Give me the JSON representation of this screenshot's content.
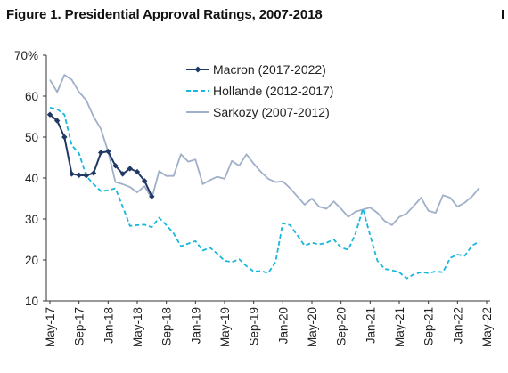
{
  "figure_title": "Figure 1. Presidential Approval Ratings, 2007-2018",
  "edge_mark": "I",
  "chart_data": {
    "type": "line",
    "title": "Figure 1. Presidential Approval Ratings, 2007-2018",
    "xlabel": "",
    "ylabel": "",
    "ylim": [
      10,
      70
    ],
    "yticks": [
      10,
      20,
      30,
      40,
      50,
      60,
      70
    ],
    "ytick_labels": [
      "10",
      "20",
      "30",
      "40",
      "50",
      "60",
      "70%"
    ],
    "xlim": [
      "2017-05",
      "2022-05"
    ],
    "xticks": [
      "2017-05",
      "2017-09",
      "2018-01",
      "2018-05",
      "2018-09",
      "2019-01",
      "2019-05",
      "2019-09",
      "2020-01",
      "2020-05",
      "2020-09",
      "2021-01",
      "2021-05",
      "2021-09",
      "2022-01",
      "2022-05"
    ],
    "xtick_labels": [
      "May-17",
      "Sep-17",
      "Jan-18",
      "May-18",
      "Sep-18",
      "Jan-19",
      "May-19",
      "Sep-19",
      "Jan-20",
      "May-20",
      "Sep-20",
      "Jan-21",
      "May-21",
      "Sep-21",
      "Jan-22",
      "May-22"
    ],
    "grid": false,
    "legend_position": "top-center",
    "series": [
      {
        "name": "Macron (2017-2022)",
        "color": "#1f3864",
        "style": "solid-markers",
        "points": [
          [
            "2017-05",
            55.5
          ],
          [
            "2017-06",
            54
          ],
          [
            "2017-07",
            50
          ],
          [
            "2017-08",
            41
          ],
          [
            "2017-09",
            40.7
          ],
          [
            "2017-10",
            40.6
          ],
          [
            "2017-11",
            41.2
          ],
          [
            "2017-12",
            46.2
          ],
          [
            "2018-01",
            46.5
          ],
          [
            "2018-02",
            43
          ],
          [
            "2018-03",
            41
          ],
          [
            "2018-04",
            42.3
          ],
          [
            "2018-05",
            41.5
          ],
          [
            "2018-06",
            39.3
          ],
          [
            "2018-07",
            35.5
          ]
        ]
      },
      {
        "name": "Hollande (2012-2017)",
        "color": "#18b7dc",
        "style": "dashed",
        "points": [
          [
            "2017-05",
            57.2
          ],
          [
            "2017-06",
            56.8
          ],
          [
            "2017-07",
            55.5
          ],
          [
            "2017-08",
            48
          ],
          [
            "2017-09",
            46
          ],
          [
            "2017-10",
            40.5
          ],
          [
            "2017-11",
            38.5
          ],
          [
            "2017-12",
            36.8
          ],
          [
            "2018-01",
            37
          ],
          [
            "2018-02",
            37.5
          ],
          [
            "2018-03",
            33
          ],
          [
            "2018-04",
            28.3
          ],
          [
            "2018-05",
            28.5
          ],
          [
            "2018-06",
            28.6
          ],
          [
            "2018-07",
            28
          ],
          [
            "2018-08",
            30.3
          ],
          [
            "2018-09",
            28.5
          ],
          [
            "2018-10",
            26.5
          ],
          [
            "2018-11",
            23.3
          ],
          [
            "2018-12",
            24
          ],
          [
            "2019-01",
            24.6
          ],
          [
            "2019-02",
            22.3
          ],
          [
            "2019-03",
            23
          ],
          [
            "2019-04",
            21.5
          ],
          [
            "2019-05",
            19.8
          ],
          [
            "2019-06",
            19.5
          ],
          [
            "2019-07",
            20.2
          ],
          [
            "2019-08",
            18.5
          ],
          [
            "2019-09",
            17.2
          ],
          [
            "2019-10",
            17.3
          ],
          [
            "2019-11",
            16.8
          ],
          [
            "2019-12",
            19.5
          ],
          [
            "2020-01",
            29
          ],
          [
            "2020-02",
            28.5
          ],
          [
            "2020-03",
            26
          ],
          [
            "2020-04",
            23.5
          ],
          [
            "2020-05",
            24.2
          ],
          [
            "2020-06",
            23.8
          ],
          [
            "2020-07",
            24.2
          ],
          [
            "2020-08",
            25
          ],
          [
            "2020-09",
            23
          ],
          [
            "2020-10",
            22.5
          ],
          [
            "2020-11",
            26.5
          ],
          [
            "2020-12",
            32.5
          ],
          [
            "2021-01",
            26
          ],
          [
            "2021-02",
            19.8
          ],
          [
            "2021-03",
            17.8
          ],
          [
            "2021-04",
            17.5
          ],
          [
            "2021-05",
            17
          ],
          [
            "2021-06",
            15.5
          ],
          [
            "2021-07",
            16.5
          ],
          [
            "2021-08",
            17
          ],
          [
            "2021-09",
            16.8
          ],
          [
            "2021-10",
            17.2
          ],
          [
            "2021-11",
            17
          ],
          [
            "2021-12",
            20.5
          ],
          [
            "2022-01",
            21.3
          ],
          [
            "2022-02",
            21
          ],
          [
            "2022-03",
            23.5
          ],
          [
            "2022-04",
            24.5
          ]
        ]
      },
      {
        "name": "Sarkozy (2007-2012)",
        "color": "#9fb0c8",
        "style": "solid",
        "points": [
          [
            "2017-05",
            64
          ],
          [
            "2017-06",
            61
          ],
          [
            "2017-07",
            65.2
          ],
          [
            "2017-08",
            64
          ],
          [
            "2017-09",
            61
          ],
          [
            "2017-10",
            59
          ],
          [
            "2017-11",
            55
          ],
          [
            "2017-12",
            52
          ],
          [
            "2018-01",
            46.5
          ],
          [
            "2018-02",
            39
          ],
          [
            "2018-03",
            38.5
          ],
          [
            "2018-04",
            37.8
          ],
          [
            "2018-05",
            36.5
          ],
          [
            "2018-06",
            38
          ],
          [
            "2018-07",
            35
          ],
          [
            "2018-08",
            41.7
          ],
          [
            "2018-09",
            40.5
          ],
          [
            "2018-10",
            40.5
          ],
          [
            "2018-11",
            45.8
          ],
          [
            "2018-12",
            44
          ],
          [
            "2019-01",
            44.5
          ],
          [
            "2019-02",
            38.5
          ],
          [
            "2019-03",
            39.5
          ],
          [
            "2019-04",
            40.3
          ],
          [
            "2019-05",
            39.8
          ],
          [
            "2019-06",
            44.2
          ],
          [
            "2019-07",
            43
          ],
          [
            "2019-08",
            45.8
          ],
          [
            "2019-09",
            43.5
          ],
          [
            "2019-10",
            41.5
          ],
          [
            "2019-11",
            39.8
          ],
          [
            "2019-12",
            39
          ],
          [
            "2020-01",
            39.2
          ],
          [
            "2020-02",
            37.5
          ],
          [
            "2020-03",
            35.5
          ],
          [
            "2020-04",
            33.5
          ],
          [
            "2020-05",
            35
          ],
          [
            "2020-06",
            33
          ],
          [
            "2020-07",
            32.5
          ],
          [
            "2020-08",
            34.3
          ],
          [
            "2020-09",
            32.5
          ],
          [
            "2020-10",
            30.5
          ],
          [
            "2020-11",
            31.8
          ],
          [
            "2020-12",
            32.3
          ],
          [
            "2021-01",
            32.8
          ],
          [
            "2021-02",
            31.5
          ],
          [
            "2021-03",
            29.5
          ],
          [
            "2021-04",
            28.5
          ],
          [
            "2021-05",
            30.5
          ],
          [
            "2021-06",
            31.3
          ],
          [
            "2021-07",
            33.2
          ],
          [
            "2021-08",
            35.2
          ],
          [
            "2021-09",
            32
          ],
          [
            "2021-10",
            31.5
          ],
          [
            "2021-11",
            35.8
          ],
          [
            "2021-12",
            35.2
          ],
          [
            "2022-01",
            33
          ],
          [
            "2022-02",
            34
          ],
          [
            "2022-03",
            35.5
          ],
          [
            "2022-04",
            37.6
          ]
        ]
      }
    ]
  }
}
